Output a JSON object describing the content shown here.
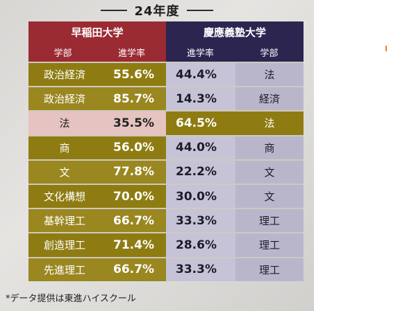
{
  "title": "24年度",
  "waseda": {
    "name": "早稲田大学",
    "col_faculty": "学部",
    "col_rate": "進学率"
  },
  "keio": {
    "name": "慶應義塾大学",
    "col_rate": "進学率",
    "col_faculty": "学部"
  },
  "rows": [
    {
      "w_faculty": "政治経済",
      "w_rate": "55.6%",
      "k_rate": "44.4%",
      "k_faculty": "法"
    },
    {
      "w_faculty": "政治経済",
      "w_rate": "85.7%",
      "k_rate": "14.3%",
      "k_faculty": "経済"
    },
    {
      "w_faculty": "法",
      "w_rate": "35.5%",
      "k_rate": "64.5%",
      "k_faculty": "法"
    },
    {
      "w_faculty": "商",
      "w_rate": "56.0%",
      "k_rate": "44.0%",
      "k_faculty": "商"
    },
    {
      "w_faculty": "文",
      "w_rate": "77.8%",
      "k_rate": "22.2%",
      "k_faculty": "文"
    },
    {
      "w_faculty": "文化構想",
      "w_rate": "70.0%",
      "k_rate": "30.0%",
      "k_faculty": "文"
    },
    {
      "w_faculty": "基幹理工",
      "w_rate": "66.7%",
      "k_rate": "33.3%",
      "k_faculty": "理工"
    },
    {
      "w_faculty": "創造理工",
      "w_rate": "71.4%",
      "k_rate": "28.6%",
      "k_faculty": "理工"
    },
    {
      "w_faculty": "先進理工",
      "w_rate": "66.7%",
      "k_rate": "33.3%",
      "k_faculty": "理工"
    }
  ],
  "footnote": "*データ提供は東進ハイスクール",
  "colors": {
    "waseda_header": "#9a2b32",
    "keio_header": "#2c2550",
    "waseda_higher": "#8e7c12",
    "keio_higher": "#8e7c12",
    "waseda_lower": "#e5c3c0",
    "keio_lower": "#c6c3d7"
  }
}
